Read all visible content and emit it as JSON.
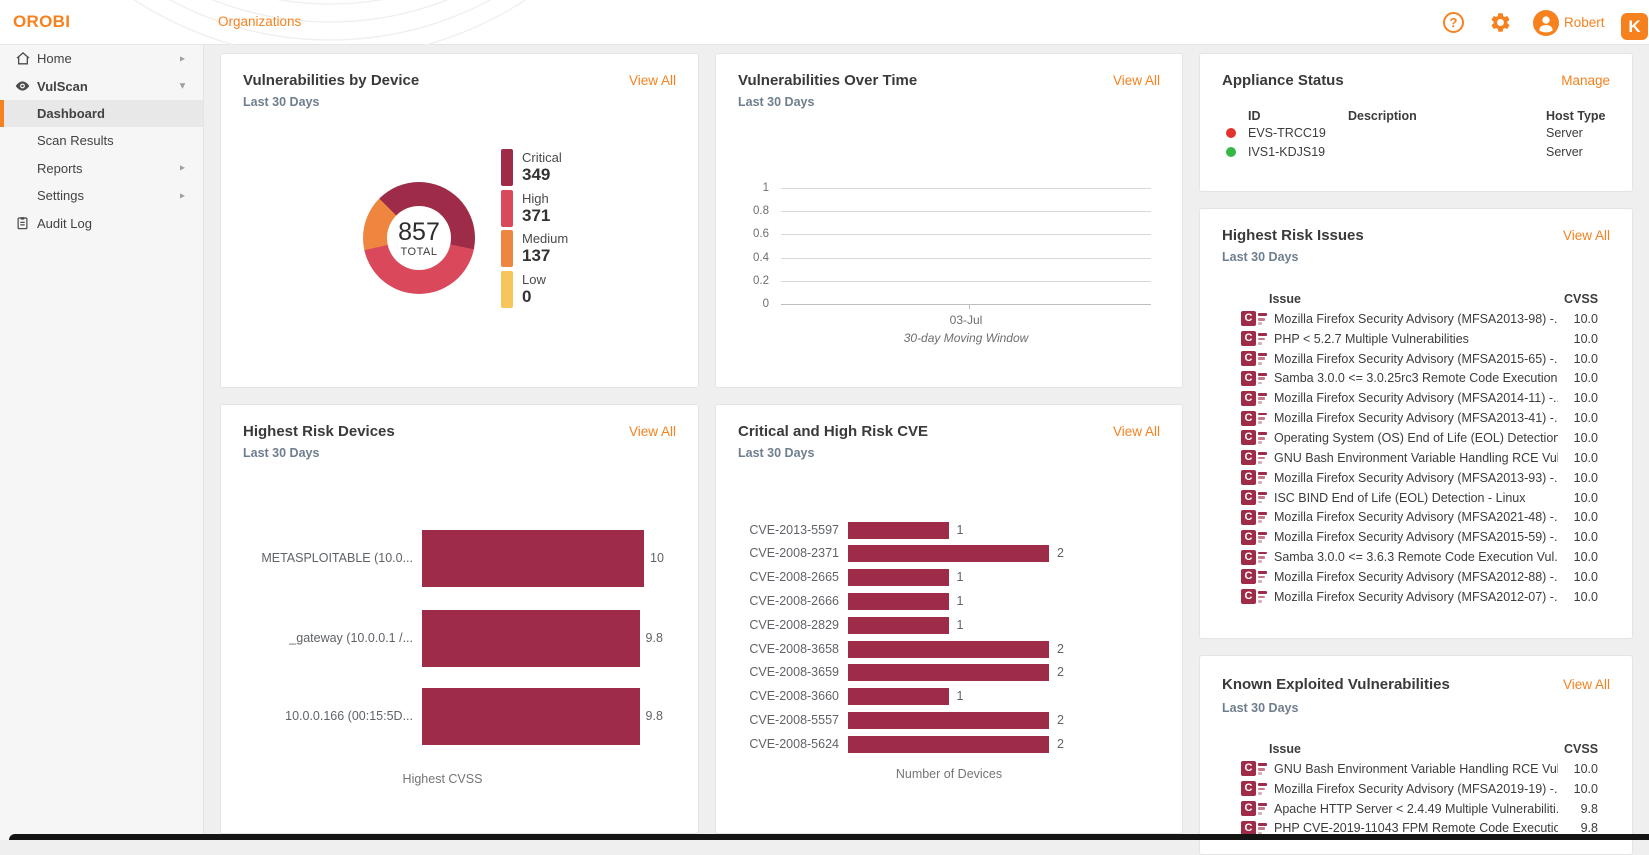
{
  "colors": {
    "accent": "#F6821F",
    "critical": "#9E2B47",
    "high": "#D9495B",
    "medium": "#EE8640",
    "low": "#F6C65B",
    "status_up": "#33B846",
    "status_down": "#E2342D"
  },
  "header": {
    "logo": "OROBI",
    "breadcrumb": "Organizations",
    "help_glyph": "?",
    "user_name": "Robert",
    "brand_badge": "K"
  },
  "sidebar": {
    "items": [
      {
        "label": "Home",
        "icon": "home",
        "chevron": "right"
      },
      {
        "label": "VulScan",
        "icon": "eye",
        "chevron": "down",
        "bold": true
      },
      {
        "label": "Dashboard",
        "child": true,
        "selected": true
      },
      {
        "label": "Scan Results",
        "child": true
      },
      {
        "label": "Reports",
        "child": true,
        "chevron": "right"
      },
      {
        "label": "Settings",
        "child": true,
        "chevron": "right"
      },
      {
        "label": "Audit Log",
        "icon": "clipboard"
      }
    ]
  },
  "panels": {
    "vuln_by_device": {
      "title": "Vulnerabilities by Device",
      "subtitle": "Last 30 Days",
      "action": "View All",
      "chart_data": {
        "type": "pie",
        "total": "857",
        "total_label": "TOTAL",
        "segments": [
          {
            "label": "Critical",
            "value": 349,
            "display": "349",
            "color": "#9E2B47"
          },
          {
            "label": "High",
            "value": 371,
            "display": "371",
            "color": "#D9495B"
          },
          {
            "label": "Medium",
            "value": 137,
            "display": "137",
            "color": "#EE8640"
          },
          {
            "label": "Low",
            "value": 0,
            "display": "0",
            "color": "#F6C65B"
          }
        ]
      }
    },
    "vuln_over_time": {
      "title": "Vulnerabilities Over Time",
      "subtitle": "Last 30 Days",
      "action": "View All",
      "chart_data": {
        "type": "line",
        "series": [],
        "y_ticks": [
          "1",
          "0.8",
          "0.6",
          "0.4",
          "0.2",
          "0"
        ],
        "x_ticks": [
          "03-Jul"
        ],
        "xlabel": "30-day Moving Window",
        "grid": true
      }
    },
    "appliance_status": {
      "title": "Appliance Status",
      "action": "Manage",
      "columns": [
        "ID",
        "Description",
        "Host Type"
      ],
      "rows": [
        {
          "id": "EVS-TRCC19",
          "description": "",
          "host_type": "Server",
          "status": "down",
          "status_color": "#E2342D"
        },
        {
          "id": "IVS1-KDJS19",
          "description": "",
          "host_type": "Server",
          "status": "up",
          "status_color": "#33B846"
        }
      ]
    },
    "highest_risk_issues": {
      "title": "Highest Risk Issues",
      "subtitle": "Last 30 Days",
      "action": "View All",
      "columns": [
        "Issue",
        "CVSS"
      ],
      "rows": [
        {
          "issue": "Mozilla Firefox Security Advisory (MFSA2013-98) -...",
          "cvss": "10.0"
        },
        {
          "issue": "PHP < 5.2.7 Multiple Vulnerabilities",
          "cvss": "10.0"
        },
        {
          "issue": "Mozilla Firefox Security Advisory (MFSA2015-65) -...",
          "cvss": "10.0"
        },
        {
          "issue": "Samba 3.0.0 <= 3.0.25rc3 Remote Code Execution...",
          "cvss": "10.0"
        },
        {
          "issue": "Mozilla Firefox Security Advisory (MFSA2014-11) -...",
          "cvss": "10.0"
        },
        {
          "issue": "Mozilla Firefox Security Advisory (MFSA2013-41) -...",
          "cvss": "10.0"
        },
        {
          "issue": "Operating System (OS) End of Life (EOL) Detection",
          "cvss": "10.0"
        },
        {
          "issue": "GNU Bash Environment Variable Handling RCE Vul...",
          "cvss": "10.0"
        },
        {
          "issue": "Mozilla Firefox Security Advisory (MFSA2013-93) -...",
          "cvss": "10.0"
        },
        {
          "issue": "ISC BIND End of Life (EOL) Detection - Linux",
          "cvss": "10.0"
        },
        {
          "issue": "Mozilla Firefox Security Advisory (MFSA2021-48) -...",
          "cvss": "10.0"
        },
        {
          "issue": "Mozilla Firefox Security Advisory (MFSA2015-59) -...",
          "cvss": "10.0"
        },
        {
          "issue": "Samba 3.0.0 <= 3.6.3 Remote Code Execution Vul...",
          "cvss": "10.0"
        },
        {
          "issue": "Mozilla Firefox Security Advisory (MFSA2012-88) -...",
          "cvss": "10.0"
        },
        {
          "issue": "Mozilla Firefox Security Advisory (MFSA2012-07) -...",
          "cvss": "10.0"
        }
      ]
    },
    "highest_risk_devices": {
      "title": "Highest Risk Devices",
      "subtitle": "Last 30 Days",
      "action": "View All",
      "chart_data": {
        "type": "bar",
        "orientation": "horizontal",
        "categories": [
          "METASPLOITABLE (10.0...",
          "_gateway (10.0.0.1 /...",
          "10.0.0.166 (00:15:5D..."
        ],
        "values": [
          10.0,
          9.8,
          9.8
        ],
        "value_labels": [
          "10.0",
          "9.8",
          "9.8"
        ],
        "xlabel": "Highest CVSS",
        "xmax": 10,
        "bar_color": "#9E2B47"
      }
    },
    "critical_high_cve": {
      "title": "Critical and High Risk CVE",
      "subtitle": "Last 30 Days",
      "action": "View All",
      "chart_data": {
        "type": "bar",
        "orientation": "horizontal",
        "categories": [
          "CVE-2013-5597",
          "CVE-2008-2371",
          "CVE-2008-2665",
          "CVE-2008-2666",
          "CVE-2008-2829",
          "CVE-2008-3658",
          "CVE-2008-3659",
          "CVE-2008-3660",
          "CVE-2008-5557",
          "CVE-2008-5624"
        ],
        "values": [
          1,
          2,
          1,
          1,
          1,
          2,
          2,
          1,
          2,
          2
        ],
        "value_labels": [
          "1",
          "2",
          "1",
          "1",
          "1",
          "2",
          "2",
          "1",
          "2",
          "2"
        ],
        "xlabel": "Number of Devices",
        "bar_color": "#9E2B47"
      }
    },
    "known_exploited": {
      "title": "Known Exploited Vulnerabilities",
      "subtitle": "Last 30 Days",
      "action": "View All",
      "columns": [
        "Issue",
        "CVSS"
      ],
      "rows": [
        {
          "issue": "GNU Bash Environment Variable Handling RCE Vul...",
          "cvss": "10.0"
        },
        {
          "issue": "Mozilla Firefox Security Advisory (MFSA2019-19) -...",
          "cvss": "10.0"
        },
        {
          "issue": "Apache HTTP Server < 2.4.49 Multiple Vulnerabiliti...",
          "cvss": "9.8"
        },
        {
          "issue": "PHP CVE-2019-11043 FPM Remote Code Executio...",
          "cvss": "9.8"
        }
      ]
    }
  }
}
